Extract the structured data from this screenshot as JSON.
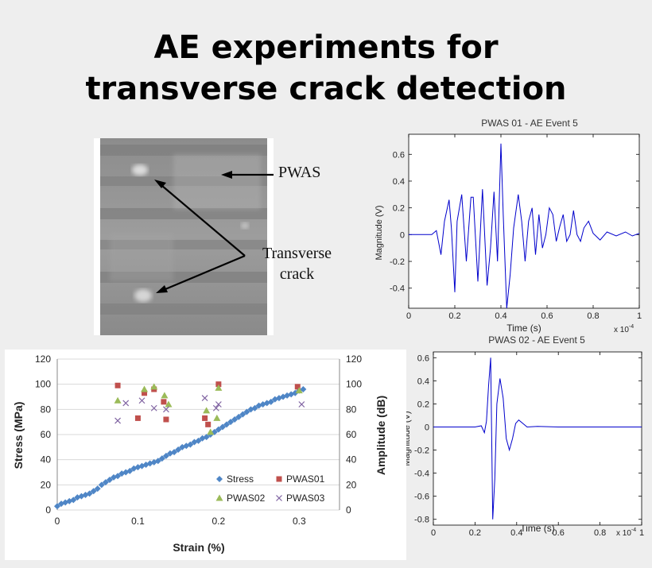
{
  "slide": {
    "title_line1": "AE experiments for",
    "title_line2": "transverse crack detection"
  },
  "photo": {
    "label_pwas": "PWAS",
    "label_crack_line1": "Transverse",
    "label_crack_line2": "crack"
  },
  "colors": {
    "stress": "#4f86c6",
    "pwas01": "#c0504d",
    "pwas02": "#9bbb59",
    "pwas03": "#8064a2",
    "waveform": "#0000cc",
    "background": "#eeeeee"
  },
  "chart_data": [
    {
      "type": "line",
      "title": "PWAS 01 - AE Event 5",
      "xlabel": "Time (s)",
      "ylabel": "Magnitude (V)",
      "x_multiplier": "x 10",
      "x_exponent": "-4",
      "xlim": [
        0,
        1
      ],
      "ylim": [
        -0.55,
        0.75
      ],
      "xticks": [
        "0",
        "0.2",
        "0.4",
        "0.6",
        "0.8",
        "1"
      ],
      "yticks": [
        "-0.4",
        "-0.2",
        "0",
        "0.2",
        "0.4",
        "0.6"
      ],
      "xtick_values": [
        0,
        0.2,
        0.4,
        0.6,
        0.8,
        1
      ],
      "ytick_values": [
        -0.4,
        -0.2,
        0,
        0.2,
        0.4,
        0.6
      ],
      "series": [
        {
          "x": [
            0,
            0.1,
            0.12,
            0.14,
            0.155,
            0.175,
            0.185,
            0.2,
            0.21,
            0.23,
            0.25,
            0.27,
            0.28,
            0.3,
            0.32,
            0.34,
            0.355,
            0.37,
            0.385,
            0.4,
            0.41,
            0.425,
            0.44,
            0.455,
            0.475,
            0.49,
            0.505,
            0.52,
            0.535,
            0.55,
            0.565,
            0.58,
            0.595,
            0.61,
            0.625,
            0.64,
            0.655,
            0.67,
            0.685,
            0.7,
            0.715,
            0.73,
            0.745,
            0.76,
            0.78,
            0.8,
            0.83,
            0.86,
            0.9,
            0.94,
            0.97,
            1.0
          ],
          "y": [
            0,
            0,
            0.03,
            -0.15,
            0.1,
            0.26,
            0.05,
            -0.43,
            0.1,
            0.3,
            -0.2,
            0.28,
            0.28,
            -0.35,
            0.34,
            -0.38,
            -0.1,
            0.32,
            -0.2,
            0.68,
            0.15,
            -0.55,
            -0.3,
            0.05,
            0.3,
            0.1,
            -0.2,
            0.1,
            0.2,
            -0.15,
            0.15,
            -0.1,
            0.0,
            0.2,
            0.15,
            -0.05,
            0.06,
            0.15,
            -0.05,
            0.0,
            0.18,
            0.0,
            -0.05,
            0.05,
            0.1,
            0.01,
            -0.04,
            0.02,
            -0.01,
            0.02,
            -0.01,
            0.01
          ]
        }
      ]
    },
    {
      "type": "line",
      "title": "PWAS 02 - AE Event 5",
      "xlabel": "Time (s)",
      "ylabel": "Magnitude (V)",
      "x_multiplier": "x 10",
      "x_exponent": "-4",
      "xlim": [
        0,
        1
      ],
      "ylim": [
        -0.85,
        0.65
      ],
      "xticks": [
        "0",
        "0.2",
        "0.4",
        "0.6",
        "0.8",
        "1"
      ],
      "yticks": [
        "-0.8",
        "-0.6",
        "-0.4",
        "-0.2",
        "0",
        "0.2",
        "0.4",
        "0.6"
      ],
      "xtick_values": [
        0,
        0.2,
        0.4,
        0.6,
        0.8,
        1
      ],
      "ytick_values": [
        -0.8,
        -0.6,
        -0.4,
        -0.2,
        0,
        0.2,
        0.4,
        0.6
      ],
      "series": [
        {
          "x": [
            0,
            0.2,
            0.23,
            0.245,
            0.255,
            0.265,
            0.275,
            0.285,
            0.295,
            0.305,
            0.32,
            0.335,
            0.35,
            0.365,
            0.38,
            0.395,
            0.41,
            0.43,
            0.45,
            0.5,
            0.6,
            1.0
          ],
          "y": [
            0,
            0,
            0.01,
            -0.05,
            0.05,
            0.35,
            0.6,
            -0.8,
            -0.45,
            0.2,
            0.42,
            0.25,
            -0.1,
            -0.2,
            -0.1,
            0.03,
            0.06,
            0.03,
            0.0,
            0.005,
            0,
            0
          ]
        }
      ]
    },
    {
      "type": "scatter",
      "title": "",
      "xlabel": "Strain (%)",
      "ylabel": "Stress (MPa)",
      "y2label": "Amplitude (dB)",
      "xlim": [
        0,
        0.35
      ],
      "ylim": [
        0,
        120
      ],
      "y2lim": [
        0,
        120
      ],
      "xticks": [
        "0",
        "0.1",
        "0.2",
        "0.3"
      ],
      "yticks": [
        "0",
        "20",
        "40",
        "60",
        "80",
        "100",
        "120"
      ],
      "y2ticks": [
        "0",
        "20",
        "40",
        "60",
        "80",
        "100",
        "120"
      ],
      "xtick_values": [
        0,
        0.1,
        0.2,
        0.3
      ],
      "ytick_values": [
        0,
        20,
        40,
        60,
        80,
        100,
        120
      ],
      "legend": "bottom-right",
      "series": [
        {
          "name": "Stress",
          "marker": "diamond",
          "axis": "left",
          "x": [
            0,
            0.005,
            0.01,
            0.015,
            0.02,
            0.025,
            0.03,
            0.035,
            0.04,
            0.045,
            0.05,
            0.055,
            0.06,
            0.065,
            0.07,
            0.075,
            0.08,
            0.085,
            0.09,
            0.095,
            0.1,
            0.105,
            0.11,
            0.115,
            0.12,
            0.125,
            0.13,
            0.135,
            0.14,
            0.145,
            0.15,
            0.155,
            0.16,
            0.165,
            0.17,
            0.175,
            0.18,
            0.185,
            0.19,
            0.195,
            0.2,
            0.205,
            0.21,
            0.215,
            0.22,
            0.225,
            0.23,
            0.235,
            0.24,
            0.245,
            0.25,
            0.255,
            0.26,
            0.265,
            0.27,
            0.275,
            0.28,
            0.285,
            0.29,
            0.295,
            0.3,
            0.305
          ],
          "y": [
            3,
            5,
            6,
            7,
            8,
            10,
            11,
            12,
            13,
            15,
            17,
            20,
            22,
            24,
            26,
            27,
            29,
            30,
            31,
            33,
            34,
            35,
            36,
            37,
            38,
            39,
            41,
            43,
            45,
            46,
            48,
            50,
            51,
            52,
            54,
            55,
            57,
            58,
            60,
            62,
            64,
            66,
            68,
            70,
            72,
            74,
            76,
            78,
            80,
            81,
            83,
            84,
            85,
            86,
            88,
            89,
            90,
            91,
            92,
            93,
            95,
            96
          ]
        },
        {
          "name": "PWAS01",
          "marker": "square",
          "axis": "right",
          "x": [
            0.075,
            0.1,
            0.108,
            0.12,
            0.132,
            0.135,
            0.183,
            0.187,
            0.2,
            0.298
          ],
          "y": [
            99,
            73,
            93,
            96,
            86,
            72,
            73,
            68,
            100,
            98
          ]
        },
        {
          "name": "PWAS02",
          "marker": "triangle",
          "axis": "right",
          "x": [
            0.075,
            0.108,
            0.12,
            0.133,
            0.138,
            0.185,
            0.19,
            0.198,
            0.2,
            0.3
          ],
          "y": [
            87,
            96,
            98,
            91,
            84,
            79,
            62,
            73,
            97,
            95
          ]
        },
        {
          "name": "PWAS03",
          "marker": "x",
          "axis": "right",
          "x": [
            0.075,
            0.085,
            0.105,
            0.12,
            0.135,
            0.183,
            0.197,
            0.2,
            0.303
          ],
          "y": [
            71,
            85,
            87,
            81,
            80,
            89,
            81,
            84,
            84
          ]
        }
      ]
    }
  ]
}
